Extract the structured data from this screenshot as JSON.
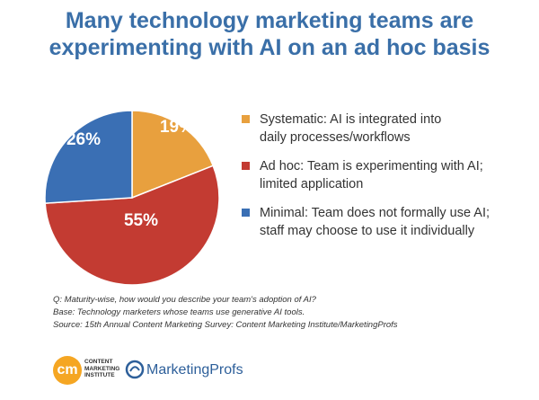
{
  "title_lines": [
    "Many technology marketing teams are",
    "experimenting with AI on an ad hoc basis"
  ],
  "chart_data": {
    "type": "pie",
    "slices": [
      {
        "label": "Systematic",
        "value": 19,
        "display": "19%",
        "color": "#e8a03e",
        "legend": "Systematic: AI is integrated into daily processes/workflows"
      },
      {
        "label": "Ad hoc",
        "value": 55,
        "display": "55%",
        "color": "#c33b32",
        "legend": "Ad hoc: Team is experimenting with AI; limited application"
      },
      {
        "label": "Minimal",
        "value": 26,
        "display": "26%",
        "color": "#3a6fb4",
        "legend": "Minimal: Team does not formally use AI; staff may choose to use it individually"
      }
    ],
    "legend_placement": "right"
  },
  "legend": [
    {
      "line1": "Systematic: AI is integrated into",
      "line2": "daily processes/workflows",
      "color": "#e8a03e"
    },
    {
      "line1": "Ad hoc: Team is experimenting with AI;",
      "line2": "limited application",
      "color": "#c33b32"
    },
    {
      "line1": "Minimal: Team does not formally use AI;",
      "line2": "staff may choose to use it individually",
      "color": "#3a6fb4"
    }
  ],
  "notes": {
    "question": "Q: Maturity-wise, how would you describe your team's adoption of AI?",
    "base": "Base: Technology marketers whose teams use generative AI tools.",
    "source": "Source: 15th Annual Content Marketing Survey: Content Marketing Institute/MarketingProfs"
  },
  "logos": {
    "cmi_mark": "cm",
    "cmi_line1": "CONTENT",
    "cmi_line2": "MARKETING",
    "cmi_line3": "INSTITUTE",
    "mp_name": "MarketingProfs"
  }
}
